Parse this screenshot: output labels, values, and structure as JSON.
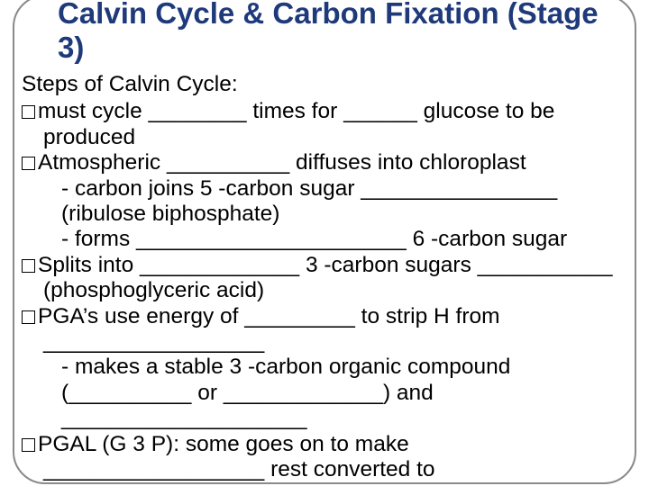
{
  "title": "Calvin Cycle & Carbon Fixation (Stage 3)",
  "heading": "Steps of Calvin Cycle:",
  "items": {
    "i1": "must cycle ________ times for ______ glucose to be produced",
    "i2": "Atmospheric __________ diffuses into chloroplast",
    "i2a": "- carbon joins 5 -carbon sugar ________________ (ribulose biphosphate)",
    "i2b": "- forms ______________________ 6 -carbon sugar",
    "i3": "Splits into _____________ 3 -carbon sugars ___________ (phosphoglyceric acid)",
    "i4": "PGA’s use energy of _________ to strip H from __________________",
    "i4a": "- makes a stable 3 -carbon organic compound (__________ or _____________) and ____________________",
    "i5": "PGAL (G 3 P):  some goes on to make __________________ rest converted to"
  },
  "colors": {
    "title": "#1f3a7a",
    "text": "#000000",
    "frame": "#8a8a8a",
    "background": "#ffffff"
  },
  "font_sizes": {
    "title": 33,
    "body": 24.5
  }
}
